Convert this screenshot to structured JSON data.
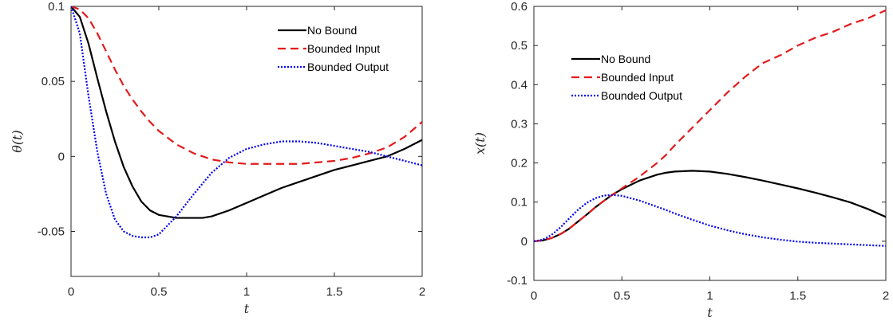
{
  "chart_data": [
    {
      "type": "line",
      "xlabel": "t",
      "ylabel": "θ(t)",
      "xlim": [
        0,
        2
      ],
      "ylim": [
        -0.08,
        0.1
      ],
      "xticks": [
        0,
        0.5,
        1,
        1.5,
        2
      ],
      "xtick_labels": [
        "0",
        "0.5",
        "1",
        "1.5",
        "2"
      ],
      "yticks": [
        -0.05,
        0,
        0.05,
        0.1
      ],
      "ytick_labels": [
        "-0.05",
        "0",
        "0.05",
        "0.1"
      ],
      "grid": false,
      "legend_position": "top-right",
      "x": [
        0,
        0.05,
        0.1,
        0.15,
        0.2,
        0.25,
        0.3,
        0.35,
        0.4,
        0.45,
        0.5,
        0.6,
        0.7,
        0.75,
        0.8,
        0.9,
        1.0,
        1.1,
        1.2,
        1.3,
        1.4,
        1.5,
        1.6,
        1.7,
        1.8,
        1.9,
        2.0
      ],
      "series": [
        {
          "name": "No Bound",
          "color": "#000000",
          "dash": "solid",
          "values": [
            0.1,
            0.093,
            0.075,
            0.052,
            0.03,
            0.01,
            -0.007,
            -0.02,
            -0.03,
            -0.036,
            -0.039,
            -0.041,
            -0.041,
            -0.041,
            -0.04,
            -0.036,
            -0.031,
            -0.026,
            -0.021,
            -0.017,
            -0.013,
            -0.009,
            -0.006,
            -0.003,
            0.0,
            0.005,
            0.011
          ]
        },
        {
          "name": "Bounded Input",
          "color": "#e31a1c",
          "dash": "dashed",
          "values": [
            0.1,
            0.098,
            0.092,
            0.082,
            0.07,
            0.058,
            0.047,
            0.038,
            0.03,
            0.023,
            0.017,
            0.008,
            0.002,
            0.0,
            -0.002,
            -0.004,
            -0.005,
            -0.005,
            -0.005,
            -0.005,
            -0.004,
            -0.003,
            -0.001,
            0.002,
            0.006,
            0.013,
            0.023
          ]
        },
        {
          "name": "Bounded Output",
          "color": "#0000ee",
          "dash": "dotted",
          "values": [
            0.1,
            0.082,
            0.04,
            0.003,
            -0.025,
            -0.042,
            -0.05,
            -0.053,
            -0.054,
            -0.054,
            -0.052,
            -0.04,
            -0.025,
            -0.018,
            -0.011,
            -0.001,
            0.005,
            0.008,
            0.01,
            0.01,
            0.009,
            0.007,
            0.005,
            0.003,
            0.0,
            -0.003,
            -0.006
          ]
        }
      ]
    },
    {
      "type": "line",
      "xlabel": "t",
      "ylabel": "x(t)",
      "xlim": [
        0,
        2
      ],
      "ylim": [
        -0.1,
        0.6
      ],
      "xticks": [
        0,
        0.5,
        1,
        1.5,
        2
      ],
      "xtick_labels": [
        "0",
        "0.5",
        "1",
        "1.5",
        "2"
      ],
      "yticks": [
        -0.1,
        0,
        0.1,
        0.2,
        0.3,
        0.4,
        0.5,
        0.6
      ],
      "ytick_labels": [
        "-0.1",
        "0",
        "0.1",
        "0.2",
        "0.3",
        "0.4",
        "0.5",
        "0.6"
      ],
      "grid": false,
      "legend_position": "top-left",
      "x": [
        0,
        0.05,
        0.1,
        0.15,
        0.2,
        0.25,
        0.3,
        0.35,
        0.4,
        0.45,
        0.5,
        0.6,
        0.7,
        0.75,
        0.8,
        0.9,
        1.0,
        1.1,
        1.2,
        1.3,
        1.4,
        1.5,
        1.6,
        1.7,
        1.8,
        1.9,
        2.0
      ],
      "series": [
        {
          "name": "No Bound",
          "color": "#000000",
          "dash": "solid",
          "values": [
            0.0,
            0.002,
            0.008,
            0.018,
            0.032,
            0.05,
            0.068,
            0.087,
            0.104,
            0.12,
            0.133,
            0.155,
            0.17,
            0.175,
            0.178,
            0.18,
            0.178,
            0.172,
            0.164,
            0.155,
            0.145,
            0.135,
            0.124,
            0.112,
            0.099,
            0.082,
            0.062
          ]
        },
        {
          "name": "Bounded Input",
          "color": "#e31a1c",
          "dash": "dashed",
          "values": [
            0.0,
            0.002,
            0.008,
            0.018,
            0.032,
            0.05,
            0.068,
            0.087,
            0.104,
            0.12,
            0.135,
            0.165,
            0.2,
            0.22,
            0.245,
            0.29,
            0.335,
            0.38,
            0.42,
            0.455,
            0.475,
            0.5,
            0.52,
            0.535,
            0.555,
            0.57,
            0.59
          ]
        },
        {
          "name": "Bounded Output",
          "color": "#0000ee",
          "dash": "dotted",
          "values": [
            0.0,
            0.004,
            0.016,
            0.035,
            0.058,
            0.08,
            0.098,
            0.11,
            0.117,
            0.118,
            0.116,
            0.104,
            0.088,
            0.08,
            0.071,
            0.055,
            0.04,
            0.028,
            0.018,
            0.01,
            0.004,
            -0.001,
            -0.004,
            -0.006,
            -0.008,
            -0.01,
            -0.012
          ]
        }
      ]
    }
  ]
}
